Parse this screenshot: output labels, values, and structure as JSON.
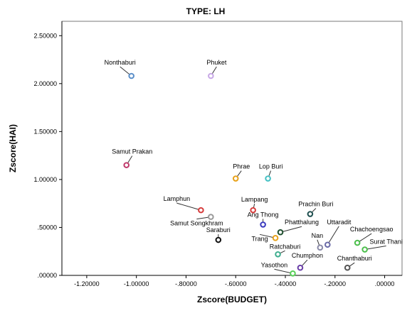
{
  "chart_data": {
    "type": "scatter",
    "title": "TYPE: LH",
    "xlabel": "Zscore(BUDGET)",
    "ylabel": "Zscore(HAI)",
    "xlim": [
      -1.3,
      0.07
    ],
    "ylim": [
      0.0,
      2.65
    ],
    "x_ticks": [
      -1.2,
      -1.0,
      -0.8,
      -0.6,
      -0.4,
      -0.2,
      0.0
    ],
    "x_tick_labels": [
      "-1.20000",
      "-1.00000",
      "-.80000",
      "-.60000",
      "-.40000",
      "-.20000",
      ".00000"
    ],
    "y_ticks": [
      0.0,
      0.5,
      1.0,
      1.5,
      2.0,
      2.5
    ],
    "y_tick_labels": [
      ".00000",
      ".50000",
      "1.00000",
      "1.50000",
      "2.00000",
      "2.50000"
    ],
    "grid": false,
    "points": [
      {
        "label": "Nonthaburi",
        "x": -1.02,
        "y": 2.08,
        "color": "#5b8fc9",
        "label_dx": -16,
        "label_dy": -16
      },
      {
        "label": "Phuket",
        "x": -0.7,
        "y": 2.08,
        "color": "#c8a8e6",
        "label_dx": 8,
        "label_dy": -16
      },
      {
        "label": "Samut Prakan",
        "x": -1.04,
        "y": 1.15,
        "color": "#c0396b",
        "label_dx": 8,
        "label_dy": -16
      },
      {
        "label": "Phrae",
        "x": -0.6,
        "y": 1.01,
        "color": "#e8a21a",
        "label_dx": 8,
        "label_dy": -14
      },
      {
        "label": "Lop Buri",
        "x": -0.47,
        "y": 1.01,
        "color": "#45c1c4",
        "label_dx": 4,
        "label_dy": -14
      },
      {
        "label": "Lamphun",
        "x": -0.74,
        "y": 0.68,
        "color": "#d63b3b",
        "label_dx": -34,
        "label_dy": -13
      },
      {
        "label": "Samut Songkhram",
        "x": -0.7,
        "y": 0.61,
        "color": "#9a9a9a",
        "label_dx": -20,
        "label_dy": 12
      },
      {
        "label": "Saraburi",
        "x": -0.67,
        "y": 0.37,
        "color": "#111111",
        "label_dx": 0,
        "label_dy": -11
      },
      {
        "label": "Lampang",
        "x": -0.53,
        "y": 0.68,
        "color": "#d63b3b",
        "label_dx": 2,
        "label_dy": -12
      },
      {
        "label": "Ang Thong",
        "x": -0.49,
        "y": 0.53,
        "color": "#3b3bbf",
        "label_dx": 0,
        "label_dy": -11
      },
      {
        "label": "Prachin Buri",
        "x": -0.3,
        "y": 0.64,
        "color": "#1f4f4f",
        "label_dx": 8,
        "label_dy": -11
      },
      {
        "label": "Phatthalung",
        "x": -0.42,
        "y": 0.45,
        "color": "#1f4f2f",
        "label_dx": 30,
        "label_dy": -11
      },
      {
        "label": "Trang",
        "x": -0.44,
        "y": 0.39,
        "color": "#e8a21a",
        "label_dx": -22,
        "label_dy": 4
      },
      {
        "label": "Ratchaburi",
        "x": -0.43,
        "y": 0.22,
        "color": "#3fae8f",
        "label_dx": 10,
        "label_dy": -8
      },
      {
        "label": "Nan",
        "x": -0.26,
        "y": 0.29,
        "color": "#8a8aa8",
        "label_dx": -4,
        "label_dy": -14
      },
      {
        "label": "Uttaradit",
        "x": -0.23,
        "y": 0.32,
        "color": "#6a6aa8",
        "label_dx": 16,
        "label_dy": -29
      },
      {
        "label": "Chachoengsao",
        "x": -0.11,
        "y": 0.34,
        "color": "#4cbf4c",
        "label_dx": 20,
        "label_dy": -16
      },
      {
        "label": "Surat Thani",
        "x": -0.08,
        "y": 0.27,
        "color": "#4cbf4c",
        "label_dx": 30,
        "label_dy": -8
      },
      {
        "label": "Chumphon",
        "x": -0.34,
        "y": 0.08,
        "color": "#6a3fa8",
        "label_dx": 10,
        "label_dy": -14
      },
      {
        "label": "Chanthaburi",
        "x": -0.15,
        "y": 0.08,
        "color": "#555555",
        "label_dx": 10,
        "label_dy": -10
      },
      {
        "label": "Yasothon",
        "x": -0.37,
        "y": 0.02,
        "color": "#58d058",
        "label_dx": -26,
        "label_dy": -9
      }
    ]
  }
}
